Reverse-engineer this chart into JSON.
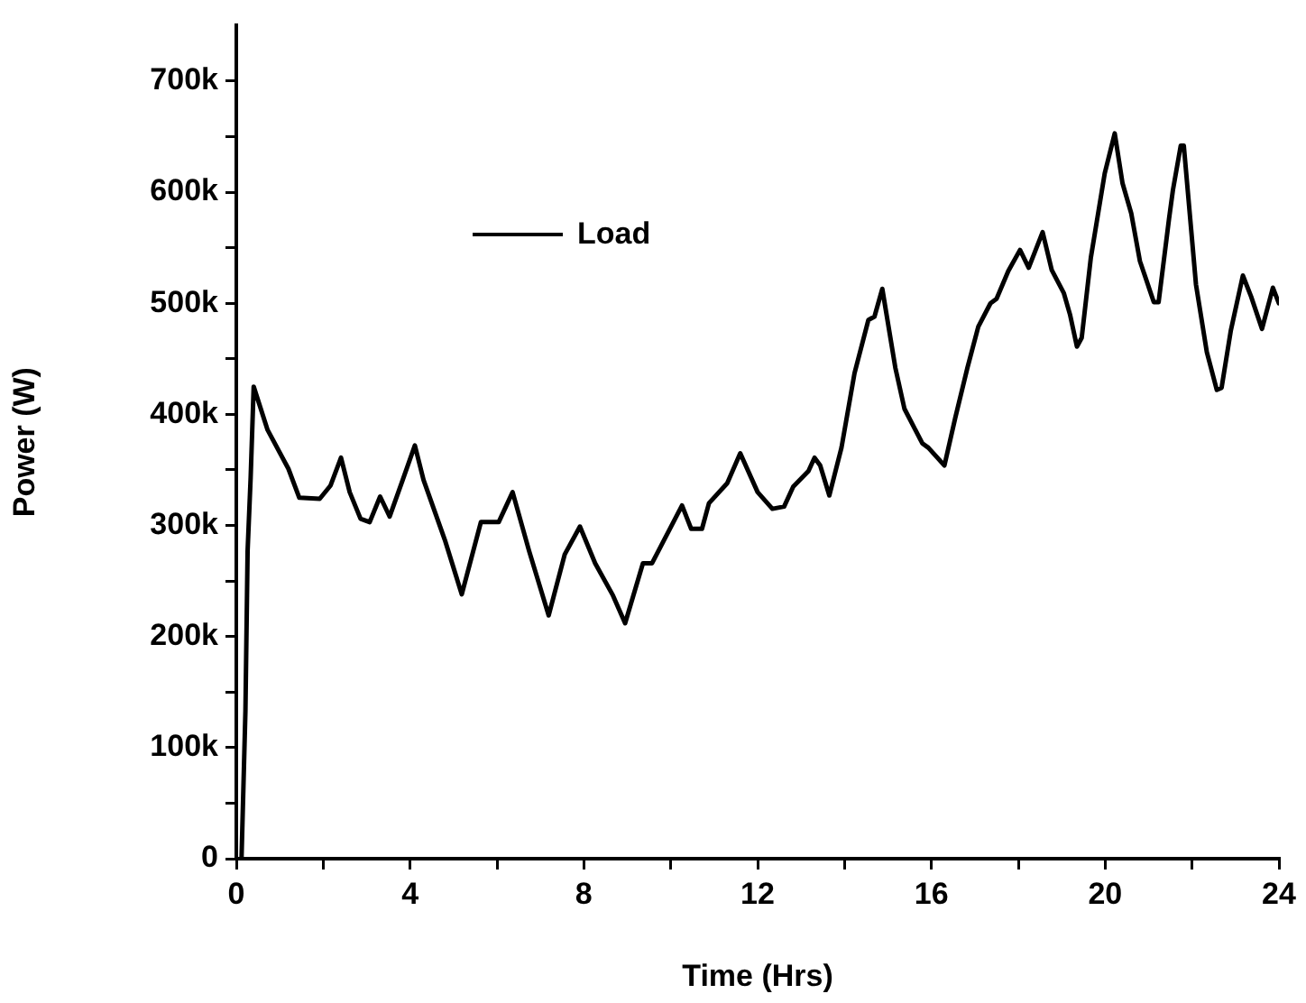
{
  "chart_data": {
    "type": "line",
    "xlabel": "Time (Hrs)",
    "ylabel": "Power (W)",
    "legend": "top left",
    "marker": "none",
    "line_style": "solid",
    "xlim": [
      0,
      24
    ],
    "xticks": [
      0,
      {
        "value": 2,
        "label": null
      },
      4,
      {
        "value": 6,
        "label": null
      },
      8,
      {
        "value": 10,
        "label": null
      },
      12,
      {
        "value": 14,
        "label": null
      },
      16,
      {
        "value": 18,
        "label": null
      },
      20,
      {
        "value": 22,
        "label": null
      },
      24
    ],
    "ylim": [
      0,
      750000
    ],
    "yticks": [
      {
        "value": 0,
        "label": "0"
      },
      {
        "value": 50000,
        "label": null
      },
      {
        "value": 100000,
        "label": "100k"
      },
      {
        "value": 150000,
        "label": null
      },
      {
        "value": 200000,
        "label": "200k"
      },
      {
        "value": 250000,
        "label": null
      },
      {
        "value": 300000,
        "label": "300k"
      },
      {
        "value": 350000,
        "label": null
      },
      {
        "value": 400000,
        "label": "400k"
      },
      {
        "value": 450000,
        "label": null
      },
      {
        "value": 500000,
        "label": "500k"
      },
      {
        "value": 550000,
        "label": null
      },
      {
        "value": 600000,
        "label": "600k"
      },
      {
        "value": 650000,
        "label": null
      },
      {
        "value": 700000,
        "label": "700k"
      }
    ],
    "series": [
      {
        "name": "Load",
        "color": "#000000",
        "x": [
          0.12,
          0.21,
          0.26,
          0.33,
          0.4,
          0.72,
          1.2,
          1.45,
          1.92,
          2.17,
          2.41,
          2.61,
          2.86,
          3.07,
          3.31,
          3.53,
          3.83,
          4.11,
          4.31,
          4.8,
          5.19,
          5.63,
          6.04,
          6.36,
          6.74,
          7.19,
          7.56,
          7.91,
          8.26,
          8.67,
          8.95,
          9.36,
          9.57,
          10.26,
          10.47,
          10.72,
          10.88,
          11.3,
          11.6,
          12.0,
          12.34,
          12.61,
          12.82,
          13.17,
          13.31,
          13.44,
          13.65,
          13.93,
          14.23,
          14.55,
          14.69,
          14.87,
          15.17,
          15.38,
          15.79,
          15.93,
          16.3,
          16.55,
          16.83,
          17.08,
          17.36,
          17.5,
          17.77,
          18.04,
          18.24,
          18.56,
          18.77,
          19.05,
          19.19,
          19.35,
          19.46,
          19.67,
          19.99,
          20.22,
          20.4,
          20.6,
          20.8,
          21.12,
          21.23,
          21.47,
          21.56,
          21.74,
          21.81,
          22.09,
          22.34,
          22.57,
          22.68,
          22.89,
          23.17,
          23.36,
          23.61,
          23.86,
          24.0
        ],
        "values": [
          0,
          133000,
          277000,
          343000,
          425000,
          386000,
          351000,
          325000,
          324000,
          336000,
          361000,
          330000,
          306000,
          303000,
          326000,
          308000,
          341000,
          372000,
          341000,
          287000,
          238000,
          303000,
          303000,
          330000,
          277000,
          219000,
          274000,
          299000,
          266000,
          237000,
          212000,
          266000,
          266000,
          318000,
          297000,
          297000,
          320000,
          338000,
          365000,
          330000,
          315000,
          317000,
          335000,
          349000,
          361000,
          354000,
          327000,
          370000,
          437000,
          485000,
          488000,
          513000,
          442000,
          405000,
          374000,
          370000,
          354000,
          397000,
          442000,
          479000,
          500000,
          504000,
          529000,
          548000,
          532000,
          564000,
          530000,
          509000,
          490000,
          461000,
          469000,
          541000,
          617000,
          653000,
          608000,
          581000,
          538000,
          501000,
          501000,
          576000,
          602000,
          642000,
          642000,
          517000,
          456000,
          422000,
          424000,
          475000,
          525000,
          506000,
          477000,
          514000,
          500000
        ]
      }
    ]
  }
}
